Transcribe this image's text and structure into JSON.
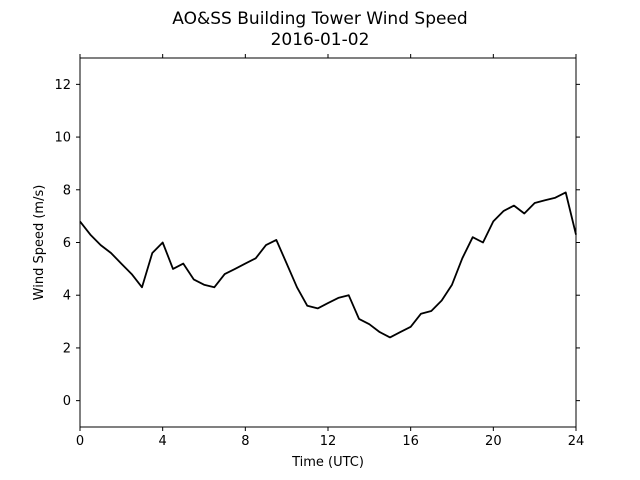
{
  "chart_data": {
    "type": "line",
    "title": "AO&SS Building Tower Wind Speed",
    "subtitle": "2016-01-02",
    "xlabel": "Time (UTC)",
    "ylabel": "Wind Speed (m/s)",
    "xlim": [
      0,
      24
    ],
    "ylim": [
      -1,
      13
    ],
    "x_ticks": [
      0,
      4,
      8,
      12,
      16,
      20,
      24
    ],
    "x_tick_labels": [
      "0",
      "4",
      "8",
      "12",
      "16",
      "20",
      "24"
    ],
    "y_ticks": [
      0,
      2,
      4,
      6,
      8,
      10,
      12
    ],
    "y_tick_labels": [
      "0",
      "2",
      "4",
      "6",
      "8",
      "10",
      "12"
    ],
    "grid": false,
    "line_color": "#000000",
    "series": [
      {
        "x": [
          0,
          0.5,
          1,
          1.5,
          2,
          2.5,
          3,
          3.5,
          4,
          4.5,
          5,
          5.5,
          6,
          6.5,
          7,
          7.5,
          8,
          8.5,
          9,
          9.5,
          10,
          10.5,
          11,
          11.5,
          12,
          12.5,
          13,
          13.5,
          14,
          14.5,
          15,
          15.5,
          16,
          16.5,
          17,
          17.5,
          18,
          18.5,
          19,
          19.5,
          20,
          20.5,
          21,
          21.5,
          22,
          22.5,
          23,
          23.5,
          24
        ],
        "y": [
          6.8,
          6.3,
          5.9,
          5.6,
          5.2,
          4.8,
          4.3,
          5.6,
          6.0,
          5.0,
          5.2,
          4.6,
          4.4,
          4.3,
          4.8,
          5.0,
          5.2,
          5.4,
          5.9,
          6.1,
          5.2,
          4.3,
          3.6,
          3.5,
          3.7,
          3.9,
          4.0,
          3.1,
          2.9,
          2.6,
          2.4,
          2.6,
          2.8,
          3.3,
          3.4,
          3.8,
          4.4,
          5.4,
          6.2,
          6.0,
          6.8,
          7.2,
          7.4,
          7.1,
          7.5,
          7.6,
          7.7,
          7.9,
          6.3
        ]
      }
    ]
  }
}
